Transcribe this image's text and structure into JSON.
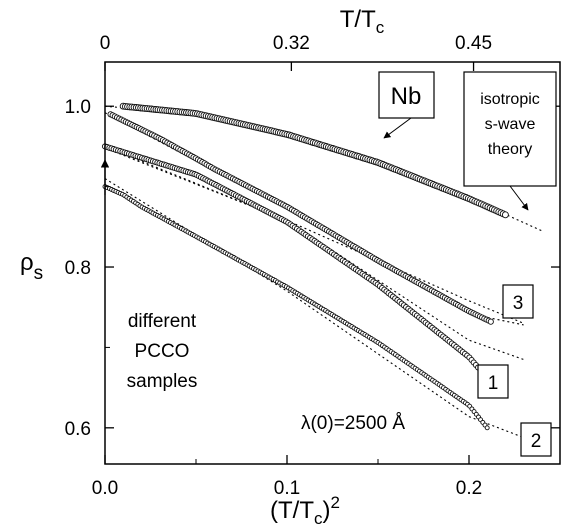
{
  "chart_data": {
    "type": "scatter",
    "xlabel": "(T/T",
    "xlabel_sub": "c",
    "xlabel_sup": "2",
    "xlabel_close": ")",
    "top_axis_label": "T/T",
    "top_axis_label_sub": "c",
    "ylabel": "ρ",
    "ylabel_sub": "s",
    "xlim": [
      0.0,
      0.25
    ],
    "ylim": [
      0.555,
      1.055
    ],
    "x_ticks": [
      {
        "v": 0.0,
        "label": "0.0"
      },
      {
        "v": 0.1,
        "label": "0.1"
      },
      {
        "v": 0.2,
        "label": "0.2"
      }
    ],
    "y_ticks": [
      {
        "v": 0.6,
        "label": "0.6"
      },
      {
        "v": 0.8,
        "label": "0.8"
      },
      {
        "v": 1.0,
        "label": "1.0"
      }
    ],
    "top_ticks": [
      {
        "v": 0.0,
        "label": "0"
      },
      {
        "v": 0.1024,
        "label": "0.32"
      },
      {
        "v": 0.2025,
        "label": "0.45"
      }
    ],
    "grid": false,
    "series": [
      {
        "name": "Nb",
        "points": [
          [
            0.01,
            1.0
          ],
          [
            0.05,
            0.991
          ],
          [
            0.1,
            0.965
          ],
          [
            0.15,
            0.93
          ],
          [
            0.2,
            0.885
          ],
          [
            0.22,
            0.865
          ]
        ],
        "marker_size": 3.0
      },
      {
        "name": "3",
        "points": [
          [
            0.003,
            0.99
          ],
          [
            0.03,
            0.96
          ],
          [
            0.05,
            0.935
          ],
          [
            0.06,
            0.922
          ],
          [
            0.1,
            0.875
          ],
          [
            0.15,
            0.808
          ],
          [
            0.2,
            0.745
          ],
          [
            0.212,
            0.732
          ]
        ],
        "marker_size": 2.6
      },
      {
        "name": "1",
        "points": [
          [
            0.0,
            0.95
          ],
          [
            0.05,
            0.915
          ],
          [
            0.1,
            0.856
          ],
          [
            0.15,
            0.778
          ],
          [
            0.2,
            0.688
          ],
          [
            0.205,
            0.675
          ]
        ],
        "marker_size": 2.6
      },
      {
        "name": "2",
        "points": [
          [
            0.0,
            0.9
          ],
          [
            0.01,
            0.89
          ],
          [
            0.02,
            0.875
          ],
          [
            0.05,
            0.838
          ],
          [
            0.1,
            0.775
          ],
          [
            0.15,
            0.706
          ],
          [
            0.2,
            0.628
          ],
          [
            0.21,
            0.6
          ]
        ],
        "marker_size": 2.0
      }
    ],
    "theory_lines": [
      [
        [
          0.0,
          1.0
        ],
        [
          0.05,
          0.99
        ],
        [
          0.1,
          0.967
        ],
        [
          0.15,
          0.932
        ],
        [
          0.2,
          0.886
        ],
        [
          0.24,
          0.845
        ]
      ],
      [
        [
          0.0,
          0.992
        ],
        [
          0.1,
          0.872
        ],
        [
          0.2,
          0.742
        ],
        [
          0.23,
          0.728
        ]
      ],
      [
        [
          0.0,
          0.948
        ],
        [
          0.1,
          0.858
        ],
        [
          0.2,
          0.758
        ],
        [
          0.23,
          0.73
        ]
      ],
      [
        [
          0.0,
          0.95
        ],
        [
          0.1,
          0.858
        ],
        [
          0.2,
          0.709
        ],
        [
          0.23,
          0.685
        ]
      ],
      [
        [
          0.0,
          0.91
        ],
        [
          0.1,
          0.77
        ],
        [
          0.2,
          0.614
        ],
        [
          0.23,
          0.588
        ]
      ]
    ],
    "annotations": {
      "nb_box": "Nb",
      "theory_line1": "isotropic",
      "theory_line2": "s-wave",
      "theory_line3": "theory",
      "samples_line1": "different",
      "samples_line2": "PCCO",
      "samples_line3": "samples",
      "lambda": "λ(0)=2500 Å",
      "label_3": "3",
      "label_1": "1",
      "label_2": "2"
    }
  }
}
